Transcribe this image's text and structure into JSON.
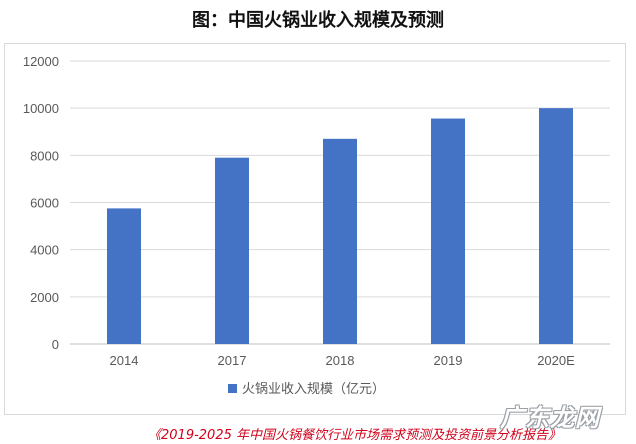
{
  "title": "图：中国火锅业收入规模及预测",
  "chart_data": {
    "type": "bar",
    "categories": [
      "2014",
      "2017",
      "2018",
      "2019",
      "2020E"
    ],
    "series": [
      {
        "name": "火锅业收入规模（亿元）",
        "values": [
          5750,
          7900,
          8700,
          9560,
          10000
        ]
      }
    ],
    "ylim": [
      0,
      12000
    ],
    "yticks": [
      0,
      2000,
      4000,
      6000,
      8000,
      10000,
      12000
    ],
    "grid": true,
    "legend_position": "bottom",
    "bar_color": "#4472c4"
  },
  "source_note": "《2019-2025 年中国火锅餐饮行业市场需求预测及投资前景分析报告》",
  "watermark": "广东龙网"
}
